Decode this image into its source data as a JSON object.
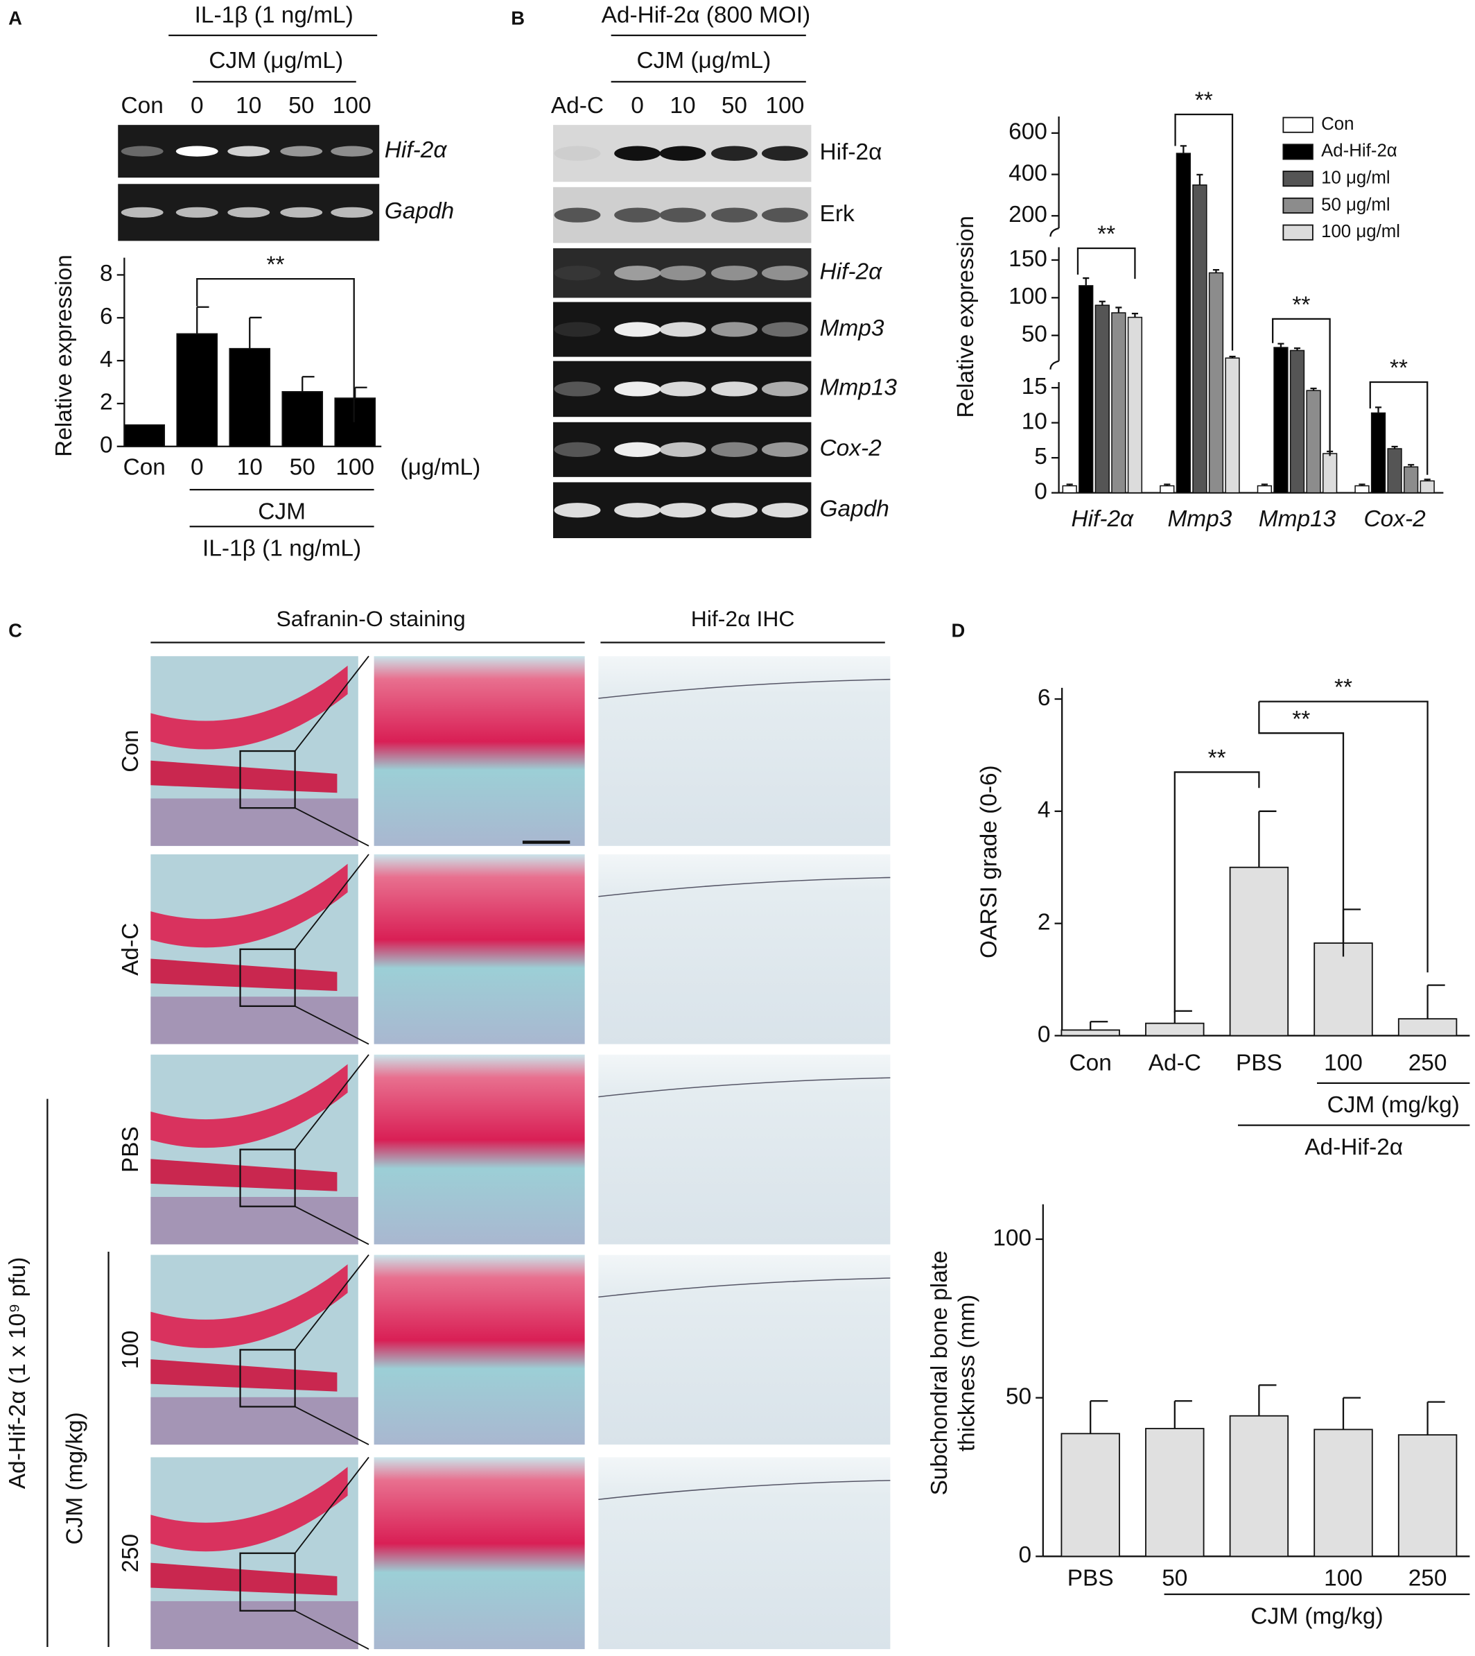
{
  "panels": {
    "A": {
      "label": "A",
      "treatment": "IL-1β (1 ng/mL)",
      "subgroup": "CJM (μg/mL)",
      "lanes": [
        "Con",
        "0",
        "10",
        "50",
        "100"
      ],
      "genes": [
        "Hif-2α",
        "Gapdh"
      ]
    },
    "B": {
      "label": "B",
      "treatment": "Ad-Hif-2α (800 MOI)",
      "subgroup": "CJM (μg/mL)",
      "lanes": [
        "Ad-C",
        "0",
        "10",
        "50",
        "100"
      ],
      "blots": [
        "Hif-2α",
        "Erk",
        "Hif-2α",
        "Mmp3",
        "Mmp13",
        "Cox-2",
        "Gapdh"
      ]
    },
    "C": {
      "label": "C",
      "headers": [
        "Safranin-O staining",
        "Hif-2α IHC"
      ],
      "rows": [
        "Con",
        "Ad-C",
        "PBS",
        "100",
        "250"
      ],
      "group": "Ad-Hif-2α (1 x 10⁹ pfu)",
      "subgroup": "CJM  (mg/kg)"
    },
    "D": {
      "label": "D"
    }
  },
  "chart_data": [
    {
      "type": "bar",
      "y_label": "Relative expression",
      "categories": [
        "Con",
        "0",
        "10",
        "50",
        "100"
      ],
      "values": [
        1,
        5.25,
        4.56,
        2.55,
        2.25
      ],
      "errors": [
        0,
        1.25,
        1.45,
        0.7,
        0.5
      ],
      "color": "#000000",
      "ylim": [
        0,
        8.8
      ],
      "yticks": [
        0,
        2,
        4,
        6,
        8
      ],
      "x_unit": "(μg/mL)",
      "groups": [
        "CJM",
        "IL-1β (1 ng/mL)"
      ],
      "annotations": [
        "**"
      ]
    },
    {
      "type": "grouped_bar",
      "y_label": "Relative expression",
      "categories": [
        "Hif-2α",
        "Mmp3",
        "Mmp13",
        "Cox-2"
      ],
      "series": [
        {
          "name": "Con",
          "color": "#ffffff",
          "values": [
            1,
            1,
            1,
            1
          ],
          "errors": [
            0.2,
            0.2,
            0.2,
            0.2
          ]
        },
        {
          "name": "Ad-Hif-2α",
          "color": "#000000",
          "values": [
            116,
            502,
            34,
            11.4
          ],
          "errors": [
            10,
            36,
            5,
            0.8
          ]
        },
        {
          "name": "10 μg/ml",
          "color": "#555555",
          "values": [
            90,
            349,
            30,
            6.3
          ],
          "errors": [
            5,
            50,
            3,
            0.3
          ]
        },
        {
          "name": "50 μg/ml",
          "color": "#8c8c8c",
          "values": [
            80,
            133,
            14.6,
            3.7
          ],
          "errors": [
            7,
            4,
            0.3,
            0.3
          ]
        },
        {
          "name": "100 μg/ml",
          "color": "#dcdcdc",
          "values": [
            74,
            20,
            5.6,
            1.7
          ],
          "errors": [
            5,
            2,
            0.3,
            0.2
          ]
        }
      ],
      "y_segments": [
        {
          "ylim": [
            0,
            15.8
          ],
          "yticks": [
            0,
            5,
            10,
            15
          ]
        },
        {
          "ylim": [
            16,
            167
          ],
          "yticks": [
            50,
            100,
            150
          ]
        },
        {
          "ylim": [
            140,
            680
          ],
          "yticks": [
            200,
            400,
            600
          ]
        }
      ],
      "annotations": [
        "**",
        "**",
        "**",
        "**"
      ],
      "legend": "top-right"
    },
    {
      "type": "bar",
      "y_label": "OARSI grade (0-6)",
      "categories": [
        "Con",
        "Ad-C",
        "PBS",
        "100",
        "250"
      ],
      "values": [
        0.1,
        0.22,
        3.0,
        1.65,
        0.3
      ],
      "errors": [
        0.15,
        0.22,
        1.0,
        0.6,
        0.6
      ],
      "color": "#e0e0e0",
      "ylim": [
        0,
        6.2
      ],
      "yticks": [
        0,
        2,
        4,
        6
      ],
      "groups": [
        "CJM (mg/kg)",
        "Ad-Hif-2α"
      ],
      "annotations": [
        "**",
        "**",
        "**"
      ]
    },
    {
      "type": "bar",
      "y_label": [
        "Subchondral bone plate",
        "thickness (mm)"
      ],
      "categories": [
        "PBS",
        "50",
        null,
        "100",
        "250"
      ],
      "values": [
        38.7,
        40.3,
        44.3,
        40,
        38.3
      ],
      "errors": [
        10.3,
        8.7,
        9.7,
        10,
        10.4
      ],
      "color": "#e0e0e0",
      "ylim": [
        0,
        111
      ],
      "yticks": [
        0,
        50,
        100
      ],
      "groups": [
        "CJM (mg/kg)"
      ]
    }
  ]
}
